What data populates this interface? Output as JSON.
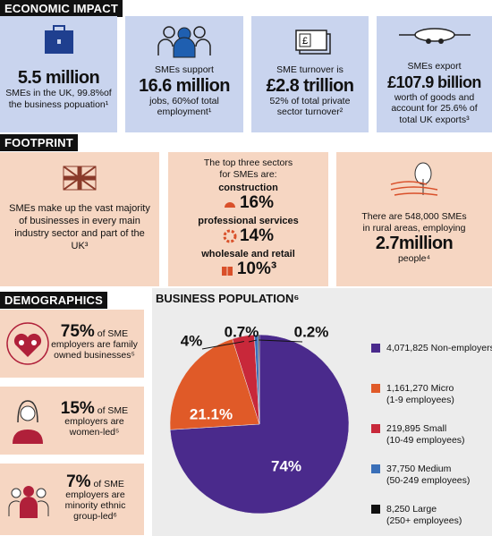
{
  "economic_impact": {
    "title": "ECONOMIC IMPACT",
    "cards": [
      {
        "big": "5.5 million",
        "post": "SMEs in the UK, 99.8%of the business popuation¹"
      },
      {
        "pre": "SMEs support",
        "big": "16.6 million",
        "post": "jobs, 60%of total employment¹"
      },
      {
        "pre": "SME turnover is",
        "big": "£2.8 trillion",
        "post": "52% of total private sector turnover²"
      },
      {
        "pre": "SMEs export",
        "big": "£107.9 billion",
        "post": "worth of goods and account for 25.6% of total UK exports³"
      }
    ]
  },
  "footprint": {
    "title": "FOOTPRINT",
    "cards": [
      {
        "text": "SMEs make up the vast majority of businesses in every main industry sector and part of the UK³"
      },
      {
        "intro": "The top three sectors for SMEs are:",
        "sectors": [
          {
            "name": "construction",
            "value": "16%"
          },
          {
            "name": "professional services",
            "value": "14%"
          },
          {
            "name": "wholesale and retail",
            "value": "10%³"
          }
        ]
      },
      {
        "pre": "There are 548,000 SMEs in rural areas, employing",
        "big": "2.7million",
        "post": "people⁴"
      }
    ]
  },
  "demographics": {
    "title": "DEMOGRAPHICS",
    "items": [
      {
        "big": "75%",
        "text": "of SME employers are family owned businesses⁵"
      },
      {
        "big": "15%",
        "text": "of SME employers are women-led⁵"
      },
      {
        "big": "7%",
        "text": "of SME employers are minority ethnic group-led⁶"
      }
    ]
  },
  "chart_data": {
    "type": "pie",
    "title": "BUSINESS POPULATION⁶",
    "counts": [
      "4,071,825",
      "1,161,270",
      "219,895",
      "37,750",
      "8,250"
    ],
    "categories": [
      "Non-employers",
      "Micro (1-9 employees)",
      "Small (10-49 employees)",
      "Medium (50-249 employees)",
      "Large (250+ employees)"
    ],
    "values": [
      74,
      21.1,
      4,
      0.7,
      0.2
    ],
    "value_labels": [
      "74%",
      "21.1%",
      "4%",
      "0.7%",
      "0.2%"
    ],
    "colors": [
      "#4a2a8c",
      "#e05a28",
      "#c8283a",
      "#3a6fb8",
      "#111111"
    ]
  }
}
